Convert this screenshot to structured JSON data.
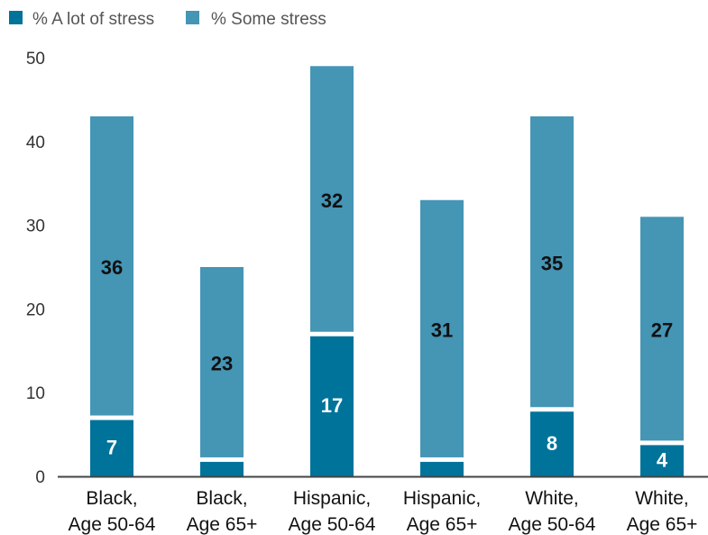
{
  "chart_data": {
    "type": "bar",
    "stacked": true,
    "categories": [
      [
        "Black,",
        "Age 50-64"
      ],
      [
        "Black,",
        "Age 65+"
      ],
      [
        "Hispanic,",
        "Age 50-64"
      ],
      [
        "Hispanic,",
        "Age 65+"
      ],
      [
        "White,",
        "Age 50-64"
      ],
      [
        "White,",
        "Age 65+"
      ]
    ],
    "series": [
      {
        "name": "% A lot of stress",
        "color": "#00739a",
        "values": [
          7,
          2,
          17,
          2,
          8,
          4
        ],
        "labels": [
          "7",
          "",
          "17",
          "",
          "8",
          "4"
        ]
      },
      {
        "name": "% Some stress",
        "color": "#4595b5",
        "values": [
          36,
          23,
          32,
          31,
          35,
          27
        ],
        "labels": [
          "36",
          "23",
          "32",
          "31",
          "35",
          "27"
        ]
      }
    ],
    "ylim": [
      0,
      50
    ],
    "yticks": [
      "0",
      "10",
      "20",
      "30",
      "40",
      "50"
    ],
    "legend_position": "top-left",
    "grid": false
  }
}
